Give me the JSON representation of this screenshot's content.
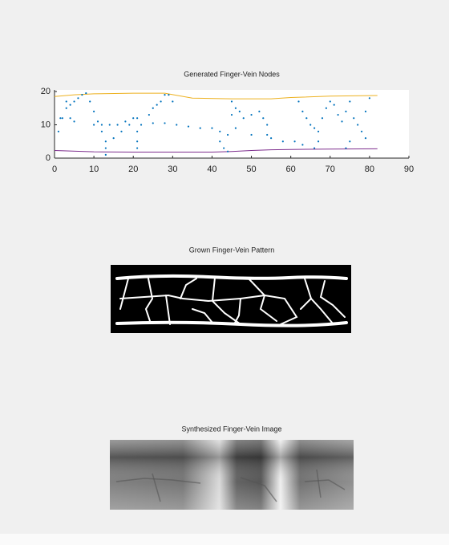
{
  "chart_data": [
    {
      "type": "scatter",
      "title": "Generated Finger-Vein Nodes",
      "xlim": [
        0,
        90
      ],
      "ylim": [
        0,
        20
      ],
      "xticks": [
        0,
        10,
        20,
        30,
        40,
        50,
        60,
        70,
        80,
        90
      ],
      "yticks": [
        0,
        10,
        20
      ],
      "series": [
        {
          "style": "line",
          "color": "#edb120",
          "x": [
            0,
            5,
            10,
            20,
            28,
            35,
            45,
            55,
            60,
            70,
            82
          ],
          "values": [
            18.5,
            19,
            19.3,
            19.5,
            19.5,
            18,
            17.8,
            17.8,
            18.2,
            18.6,
            18.8
          ]
        },
        {
          "style": "line",
          "color": "#7e2f8e",
          "x": [
            0,
            10,
            20,
            30,
            40,
            45,
            50,
            55,
            60,
            70,
            82
          ],
          "values": [
            2.3,
            1.9,
            1.8,
            1.8,
            1.8,
            2,
            2.3,
            2.5,
            2.6,
            2.7,
            2.8
          ]
        },
        {
          "style": "dots",
          "color": "#0072bd",
          "x": [
            1,
            1.5,
            2,
            3,
            3,
            4,
            4,
            5,
            5,
            6,
            7,
            8,
            9,
            10,
            11,
            12,
            13,
            13,
            13,
            10,
            12,
            14,
            16,
            18,
            20,
            21,
            15,
            17,
            19,
            21,
            21,
            21,
            22,
            24,
            25,
            26,
            27,
            28,
            29,
            30,
            25,
            28,
            31,
            34,
            37,
            40,
            42,
            44,
            42,
            43,
            44,
            45,
            45,
            46,
            47,
            48,
            50,
            52,
            53,
            54,
            54,
            46,
            50,
            55,
            58,
            61,
            63,
            62,
            63,
            64,
            65,
            66,
            67,
            68,
            69,
            70,
            71,
            72,
            73,
            74,
            75,
            76,
            77,
            78,
            79,
            80,
            79,
            74,
            75,
            66,
            67
          ],
          "values": [
            8,
            12,
            12,
            15,
            17,
            12,
            16,
            11,
            17,
            18,
            19,
            19.5,
            17,
            14,
            11,
            8,
            5,
            3,
            1,
            10,
            10,
            10,
            10,
            11,
            12,
            12,
            6,
            8,
            10,
            8,
            5,
            3,
            10,
            13,
            15,
            16,
            17,
            19,
            19,
            17,
            10.5,
            10.5,
            10,
            9.5,
            9,
            9,
            8,
            7,
            5,
            3,
            2,
            13,
            17,
            15,
            14,
            12,
            13,
            14,
            12,
            10,
            7,
            9,
            7,
            6,
            5,
            5,
            4,
            17,
            14,
            12,
            10,
            9,
            8,
            12,
            15,
            17,
            16,
            13,
            11,
            14,
            17,
            12,
            10,
            8,
            6,
            18,
            14,
            3,
            5,
            3,
            5
          ]
        }
      ]
    },
    {
      "type": "image",
      "title": "Grown Finger-Vein Pattern"
    },
    {
      "type": "image",
      "title": "Synthesized Finger-Vein Image"
    }
  ]
}
